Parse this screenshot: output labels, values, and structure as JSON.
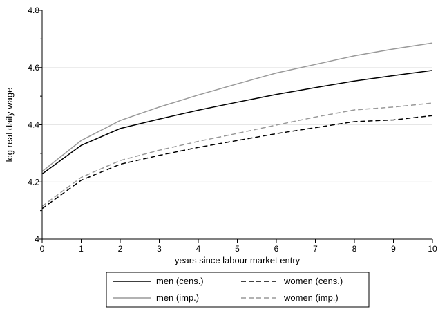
{
  "chart_data": {
    "type": "line",
    "xlabel": "years since labour market entry",
    "ylabel": "log real daily wage",
    "x": [
      0,
      1,
      2,
      3,
      4,
      5,
      6,
      7,
      8,
      9,
      10
    ],
    "xlim": [
      0,
      10
    ],
    "ylim": [
      4.0,
      4.8
    ],
    "xticks": [
      "0",
      "1",
      "2",
      "3",
      "4",
      "5",
      "6",
      "7",
      "8",
      "9",
      "10"
    ],
    "yticks": [
      "4",
      "4.2",
      "4.4",
      "4.6",
      "4.8"
    ],
    "grid": "horizontal",
    "legend_position": "bottom",
    "series": [
      {
        "name": "men (cens.)",
        "color": "#000000",
        "dash": "solid",
        "values": [
          4.228,
          4.328,
          4.387,
          4.42,
          4.451,
          4.479,
          4.506,
          4.53,
          4.553,
          4.572,
          4.59
        ]
      },
      {
        "name": "men (imp.)",
        "color": "#999999",
        "dash": "solid",
        "values": [
          4.237,
          4.345,
          4.415,
          4.462,
          4.504,
          4.543,
          4.581,
          4.611,
          4.641,
          4.665,
          4.686
        ]
      },
      {
        "name": "women (cens.)",
        "color": "#000000",
        "dash": "dashed",
        "values": [
          4.107,
          4.206,
          4.262,
          4.293,
          4.321,
          4.345,
          4.369,
          4.39,
          4.411,
          4.417,
          4.432
        ]
      },
      {
        "name": "women (imp.)",
        "color": "#999999",
        "dash": "dashed",
        "values": [
          4.115,
          4.216,
          4.275,
          4.311,
          4.342,
          4.37,
          4.399,
          4.427,
          4.452,
          4.462,
          4.476
        ]
      }
    ]
  }
}
